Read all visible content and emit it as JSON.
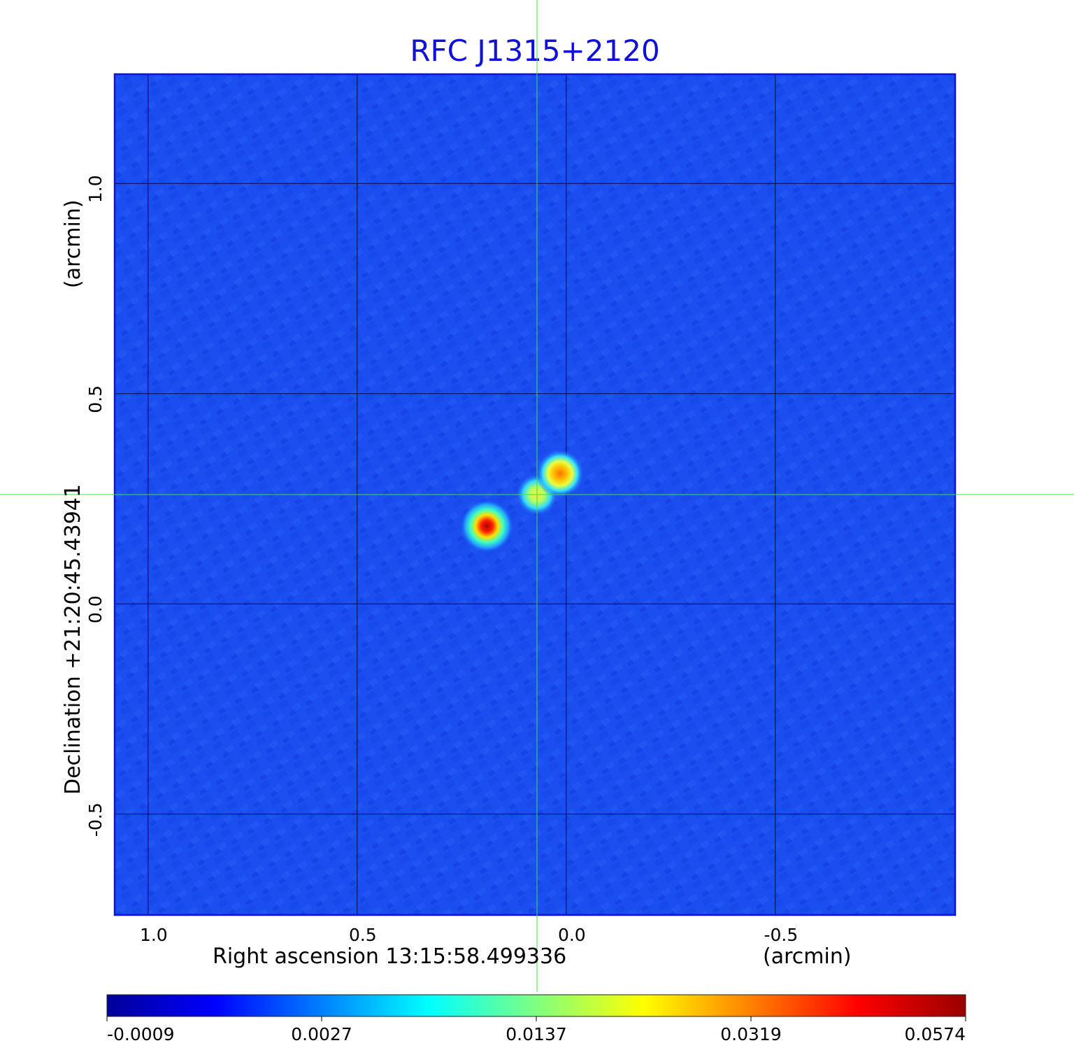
{
  "chart_data": {
    "type": "heatmap",
    "title": "RFC J1315+2120",
    "xlabel": "Right ascension  13:15:58.499336",
    "xunit": "(arcmin)",
    "ylabel": "Declination  +21:20:45.43941",
    "yunit": "(arcmin)",
    "x_axis_reversed": true,
    "xlim": [
      1.08,
      -0.93
    ],
    "ylim": [
      -0.74,
      1.26
    ],
    "x_ticks": [
      {
        "value": 1.0,
        "label": "1.0"
      },
      {
        "value": 0.5,
        "label": "0.5"
      },
      {
        "value": 0.0,
        "label": "0.0"
      },
      {
        "value": -0.5,
        "label": "-0.5"
      }
    ],
    "y_ticks": [
      {
        "value": 1.0,
        "label": "1.0"
      },
      {
        "value": 0.5,
        "label": "0.5"
      },
      {
        "value": 0.0,
        "label": "0.0"
      },
      {
        "value": -0.5,
        "label": "-0.5"
      }
    ],
    "grid": true,
    "crosshair": {
      "x": 0.07,
      "y": 0.26
    },
    "sources": [
      {
        "x": 0.19,
        "y": 0.185,
        "peak": 0.0574
      },
      {
        "x": 0.07,
        "y": 0.26,
        "peak": 0.017
      },
      {
        "x": 0.015,
        "y": 0.31,
        "peak": 0.036
      }
    ],
    "colorbar": {
      "ticks": [
        "-0.0009",
        "0.0027",
        "0.0137",
        "0.0319",
        "0.0574"
      ],
      "colors": [
        "#000099",
        "#0000ff",
        "#0080ff",
        "#00ffff",
        "#80ff80",
        "#ffff00",
        "#ff8000",
        "#ff0000",
        "#990000"
      ]
    }
  }
}
